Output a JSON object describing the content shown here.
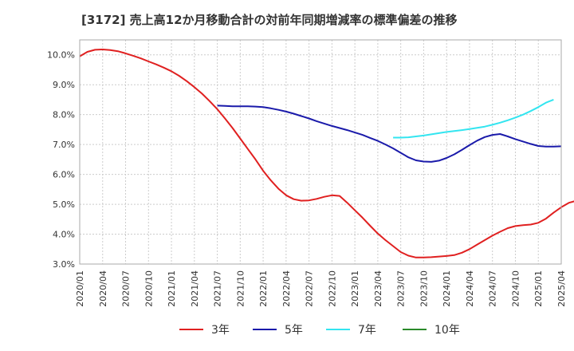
{
  "chart_data": {
    "type": "line",
    "title": "[3172]  売上高12か月移動合計の対前年同期増減率の標準偏差の推移",
    "xlabel": "",
    "ylabel": "",
    "ylim": [
      3.0,
      10.5
    ],
    "yticks": [
      3.0,
      4.0,
      5.0,
      6.0,
      7.0,
      8.0,
      9.0,
      10.0
    ],
    "ytick_labels": [
      "3.0%",
      "4.0%",
      "5.0%",
      "6.0%",
      "7.0%",
      "8.0%",
      "9.0%",
      "10.0%"
    ],
    "xlim": [
      "2020/01",
      "2025/04"
    ],
    "xtick_labels": [
      "2020/01",
      "2020/04",
      "2020/07",
      "2020/10",
      "2021/01",
      "2021/04",
      "2021/07",
      "2021/10",
      "2022/01",
      "2022/04",
      "2022/07",
      "2022/10",
      "2023/01",
      "2023/04",
      "2023/07",
      "2023/10",
      "2024/01",
      "2024/04",
      "2024/07",
      "2024/10",
      "2025/01",
      "2025/04"
    ],
    "grid": true,
    "legend_position": "bottom",
    "series": [
      {
        "name": "3年",
        "color": "#e02020",
        "start": "2020/01",
        "values": [
          9.95,
          10.1,
          10.17,
          10.18,
          10.16,
          10.12,
          10.05,
          9.97,
          9.88,
          9.78,
          9.68,
          9.57,
          9.45,
          9.3,
          9.12,
          8.92,
          8.7,
          8.45,
          8.18,
          7.87,
          7.55,
          7.2,
          6.85,
          6.5,
          6.12,
          5.8,
          5.52,
          5.3,
          5.17,
          5.12,
          5.13,
          5.18,
          5.25,
          5.3,
          5.28,
          5.05,
          4.8,
          4.55,
          4.28,
          4.02,
          3.8,
          3.6,
          3.4,
          3.28,
          3.22,
          3.22,
          3.23,
          3.25,
          3.27,
          3.3,
          3.38,
          3.5,
          3.65,
          3.8,
          3.95,
          4.08,
          4.2,
          4.27,
          4.3,
          4.32,
          4.38,
          4.52,
          4.72,
          4.9,
          5.05,
          5.12,
          5.17,
          5.24,
          5.32,
          5.42
        ]
      },
      {
        "name": "5年",
        "color": "#1a1aaa",
        "start": "2021/07",
        "values": [
          8.3,
          8.29,
          8.28,
          8.28,
          8.28,
          8.27,
          8.25,
          8.21,
          8.16,
          8.1,
          8.03,
          7.95,
          7.87,
          7.78,
          7.7,
          7.62,
          7.55,
          7.48,
          7.4,
          7.32,
          7.22,
          7.12,
          7.0,
          6.87,
          6.72,
          6.57,
          6.47,
          6.43,
          6.42,
          6.46,
          6.55,
          6.67,
          6.82,
          6.98,
          7.13,
          7.25,
          7.32,
          7.35,
          7.27,
          7.18,
          7.1,
          7.02,
          6.95,
          6.93,
          6.93,
          6.94
        ]
      },
      {
        "name": "7年",
        "color": "#33e5f0",
        "start": "2023/06",
        "values": [
          7.23,
          7.23,
          7.24,
          7.27,
          7.3,
          7.34,
          7.38,
          7.42,
          7.45,
          7.48,
          7.52,
          7.56,
          7.6,
          7.66,
          7.73,
          7.81,
          7.9,
          8.0,
          8.12,
          8.25,
          8.4,
          8.5
        ]
      },
      {
        "name": "10年",
        "color": "#2a8a2a",
        "start": "2025/01",
        "values": []
      }
    ]
  }
}
